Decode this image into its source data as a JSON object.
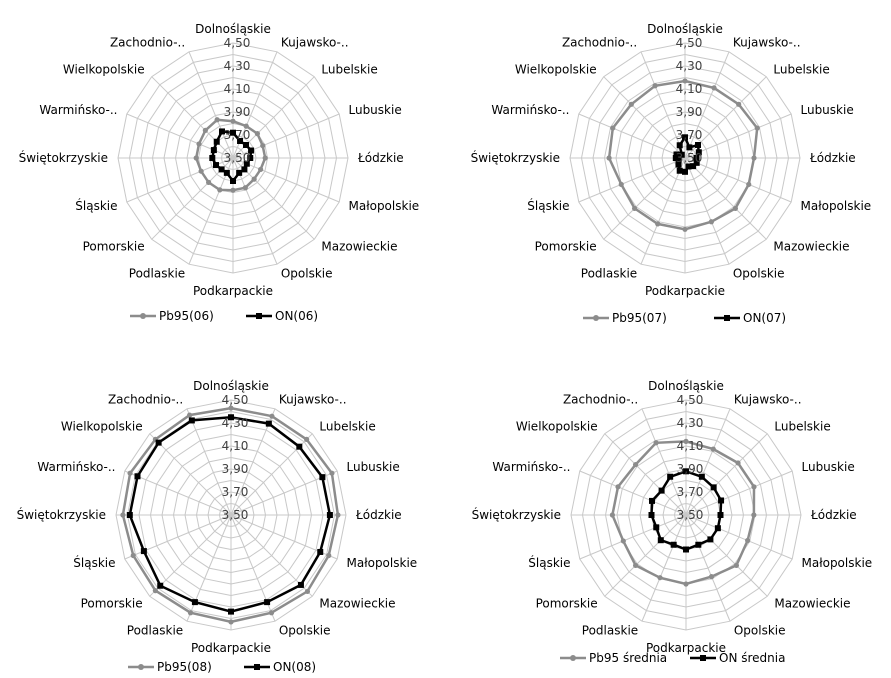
{
  "colors": {
    "pb95": "#8c8c8c",
    "on": "#000000",
    "grid": "#c8c8c8"
  },
  "chart_data": [
    {
      "type": "radar",
      "categories": [
        "Dolnośląskie",
        "Kujawsko-..",
        "Lubelskie",
        "Lubuskie",
        "Łódzkie",
        "Małopolskie",
        "Mazowieckie",
        "Opolskie",
        "Podkarpackie",
        "Podlaskie",
        "Pomorskie",
        "Śląskie",
        "Świętokrzyskie",
        "Warmińsko-..",
        "Wielkopolskie",
        "Zachodnio-.."
      ],
      "ticks": [
        "3,50",
        "3,70",
        "3,90",
        "4,10",
        "4,30",
        "4,50"
      ],
      "rlim": [
        3.5,
        4.5
      ],
      "series": [
        {
          "name": "Pb95(06)",
          "values": [
            3.82,
            3.8,
            3.8,
            3.78,
            3.78,
            3.76,
            3.76,
            3.78,
            3.78,
            3.8,
            3.8,
            3.8,
            3.82,
            3.82,
            3.84,
            3.86
          ]
        },
        {
          "name": "ON(06)",
          "values": [
            3.72,
            3.66,
            3.66,
            3.67,
            3.65,
            3.63,
            3.64,
            3.64,
            3.7,
            3.64,
            3.64,
            3.66,
            3.68,
            3.68,
            3.7,
            3.75
          ]
        }
      ],
      "legend": "bottom"
    },
    {
      "type": "radar",
      "categories": [
        "Dolnośląskie",
        "Kujawsko-..",
        "Lubelskie",
        "Lubuskie",
        "Łódzkie",
        "Małopolskie",
        "Mazowieckie",
        "Opolskie",
        "Podkarpackie",
        "Podlaskie",
        "Pomorskie",
        "Śląskie",
        "Świętokrzyskie",
        "Warmińsko-..",
        "Wielkopolskie",
        "Zachodnio-.."
      ],
      "ticks": [
        "3,50",
        "3,70",
        "3,90",
        "4,10",
        "4,30",
        "4,50"
      ],
      "rlim": [
        3.5,
        4.5
      ],
      "series": [
        {
          "name": "Pb95(07)",
          "values": [
            4.17,
            4.16,
            4.16,
            4.18,
            4.1,
            4.1,
            4.12,
            4.1,
            4.12,
            4.12,
            4.12,
            4.1,
            4.16,
            4.18,
            4.16,
            4.18
          ]
        },
        {
          "name": "ON(07)",
          "values": [
            3.68,
            3.6,
            3.66,
            3.63,
            3.6,
            3.61,
            3.6,
            3.58,
            3.62,
            3.62,
            3.58,
            3.56,
            3.58,
            3.58,
            3.54,
            3.62
          ]
        }
      ],
      "legend": "bottom"
    },
    {
      "type": "radar",
      "categories": [
        "Dolnośląskie",
        "Kujawsko-..",
        "Lubelskie",
        "Lubuskie",
        "Łódzkie",
        "Małopolskie",
        "Mazowieckie",
        "Opolskie",
        "Podkarpackie",
        "Podlaskie",
        "Pomorskie",
        "Śląskie",
        "Świętokrzyskie",
        "Warmińsko-..",
        "Wielkopolskie",
        "Zachodnio-.."
      ],
      "ticks": [
        "3,50",
        "3,70",
        "3,90",
        "4,10",
        "4,30",
        "4,50"
      ],
      "rlim": [
        3.5,
        4.5
      ],
      "series": [
        {
          "name": "Pb95(08)",
          "values": [
            4.43,
            4.43,
            4.43,
            4.45,
            4.43,
            4.42,
            4.44,
            4.42,
            4.43,
            4.42,
            4.43,
            4.42,
            4.44,
            4.45,
            4.43,
            4.44
          ]
        },
        {
          "name": "ON(08)",
          "values": [
            4.35,
            4.36,
            4.34,
            4.36,
            4.36,
            4.34,
            4.36,
            4.32,
            4.34,
            4.32,
            4.37,
            4.32,
            4.38,
            4.38,
            4.39,
            4.39
          ]
        }
      ],
      "legend": "bottom"
    },
    {
      "type": "radar",
      "categories": [
        "Dolnośląskie",
        "Kujawsko-..",
        "Lubelskie",
        "Lubuskie",
        "Łódzkie",
        "Małopolskie",
        "Mazowieckie",
        "Opolskie",
        "Podkarpackie",
        "Podlaskie",
        "Pomorskie",
        "Śląskie",
        "Świętokrzyskie",
        "Warmińsko-..",
        "Wielkopolskie",
        "Zachodnio-.."
      ],
      "ticks": [
        "3,50",
        "3,70",
        "3,90",
        "4,10",
        "4,30",
        "4,50"
      ],
      "rlim": [
        3.5,
        4.5
      ],
      "series": [
        {
          "name": "Pb95 średnia",
          "values": [
            4.14,
            4.12,
            4.14,
            4.14,
            4.09,
            4.08,
            4.12,
            4.08,
            4.1,
            4.09,
            4.12,
            4.09,
            4.14,
            4.14,
            4.12,
            4.18
          ]
        },
        {
          "name": "ON średnia",
          "values": [
            3.88,
            3.86,
            3.84,
            3.83,
            3.8,
            3.8,
            3.8,
            3.78,
            3.8,
            3.78,
            3.81,
            3.78,
            3.8,
            3.82,
            3.8,
            3.86
          ]
        }
      ],
      "legend": "bottom"
    }
  ]
}
